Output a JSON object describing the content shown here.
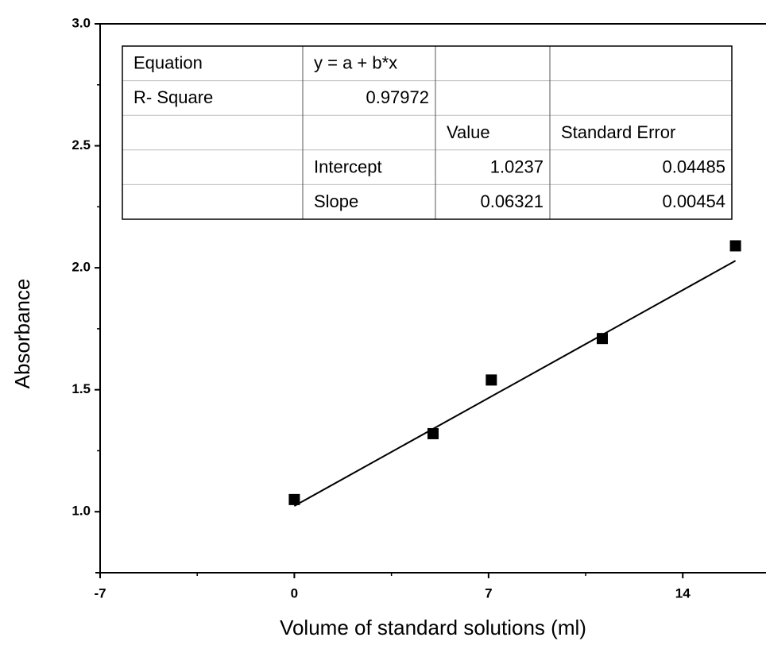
{
  "chart_data": {
    "type": "scatter",
    "x_label": "Volume of  standard solutions (ml)",
    "y_label": "Absorbance",
    "x": [
      0,
      5,
      7.1,
      11.1,
      15.9
    ],
    "series": [
      {
        "color": "#000000",
        "values": [
          1.05,
          1.32,
          1.54,
          1.71,
          2.09
        ]
      }
    ],
    "xlim": [
      -7,
      17
    ],
    "ylim": [
      0.75,
      3.0
    ],
    "xticks": [
      -7,
      0,
      7,
      14
    ],
    "yticks": [
      {
        "value": 1,
        "label": "1.0"
      },
      {
        "value": 1.5,
        "label": "1.5"
      },
      {
        "value": 2,
        "label": "2.0"
      },
      {
        "value": 2.5,
        "label": "2.5"
      },
      {
        "value": 3,
        "label": "3.0"
      }
    ],
    "table": {
      "rows": [
        [
          "Equation",
          "y = a + b*x",
          null,
          null
        ],
        [
          "R- Square",
          0.97972,
          null,
          null
        ],
        [
          null,
          null,
          "Value",
          "Standard Error"
        ],
        [
          null,
          "Intercept",
          1.0237,
          0.04485
        ],
        [
          null,
          "Slope",
          0.06321,
          0.00454
        ]
      ]
    }
  }
}
